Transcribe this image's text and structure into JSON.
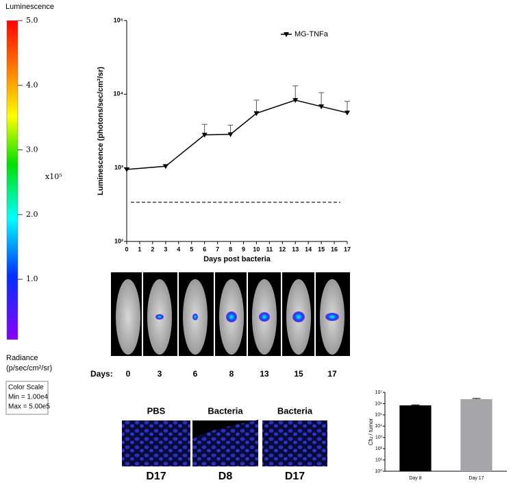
{
  "chart_data": [
    {
      "type": "line",
      "log_y": true,
      "x_label": "Days post bacteria",
      "y_label": "Luminescence (photons/sec/cm²/sr)",
      "xlim": [
        0,
        17
      ],
      "xticks": [
        0,
        1,
        2,
        3,
        4,
        5,
        6,
        7,
        8,
        9,
        10,
        11,
        12,
        13,
        14,
        15,
        16,
        17
      ],
      "ylim": [
        100,
        100000
      ],
      "yticks": [
        {
          "value": 100,
          "label": "10²"
        },
        {
          "value": 1000,
          "label": "10³"
        },
        {
          "value": 10000,
          "label": "10⁴"
        },
        {
          "value": 100000,
          "label": "10⁵"
        }
      ],
      "reference_line": 340,
      "series": [
        {
          "name": "MG-TNFa",
          "color": "#000000",
          "x": [
            0,
            3,
            6,
            8,
            10,
            13,
            15,
            17
          ],
          "values": [
            950,
            1050,
            2800,
            2850,
            5500,
            8300,
            6800,
            5600
          ],
          "errors": [
            40,
            40,
            1100,
            950,
            2800,
            4700,
            3700,
            2400
          ]
        }
      ]
    },
    {
      "type": "bar",
      "log_y": true,
      "y_label": "Cfu / tumor",
      "categories": [
        "Day 8",
        "Day 17"
      ],
      "values": [
        700000,
        2500000
      ],
      "errors": [
        80000,
        400000
      ],
      "colors": [
        "#000000",
        "#a6a6a8"
      ],
      "ylim": [
        1,
        10000000
      ],
      "yticks": [
        {
          "value": 1,
          "label": "10⁰"
        },
        {
          "value": 10,
          "label": "10¹"
        },
        {
          "value": 100,
          "label": "10²"
        },
        {
          "value": 1000,
          "label": "10³"
        },
        {
          "value": 10000,
          "label": "10⁴"
        },
        {
          "value": 100000,
          "label": "10⁵"
        },
        {
          "value": 1000000,
          "label": "10⁶"
        },
        {
          "value": 10000000,
          "label": "10⁷"
        }
      ]
    },
    {
      "type": "colorbar",
      "title": "Luminescence",
      "multiplier": "x10⁵",
      "unit_title": "Radiance",
      "unit": "(p/sec/cm²/sr)",
      "ylim": [
        0.1,
        5.0
      ],
      "yticks": [
        {
          "value": 5,
          "label": "5.0"
        },
        {
          "value": 4,
          "label": "4.0"
        },
        {
          "value": 3,
          "label": "3.0"
        },
        {
          "value": 2,
          "label": "2.0"
        },
        {
          "value": 1,
          "label": "1.0"
        }
      ],
      "scale_box": [
        "Color Scale",
        "Min = 1.00e4",
        "Max = 5.00e5"
      ]
    }
  ],
  "imaging": {
    "days_label": "Days:",
    "days": [
      "0",
      "3",
      "6",
      "8",
      "13",
      "15",
      "17"
    ]
  },
  "histology": {
    "stains": [
      "PBS",
      "Bacteria",
      "Bacteria"
    ],
    "timepoints": [
      "D17",
      "D8",
      "D17"
    ]
  }
}
